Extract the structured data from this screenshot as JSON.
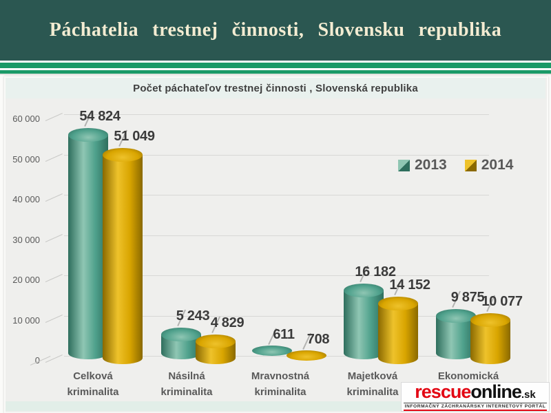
{
  "header": {
    "title": "Páchatelia trestnej činnosti, Slovensku republika"
  },
  "chart": {
    "title": "Počet páchateľov trestnej činnosti , Slovenská republika"
  },
  "chart_data": {
    "type": "bar",
    "subtype": "3d-cylinder",
    "title": "Počet páchateľov trestnej činnosti , Slovenská republika",
    "categories": [
      "Celková kriminalita",
      "Násilná kriminalita",
      "Mravnostná kriminalita",
      "Majetková kriminalita",
      "Ekonomická kriminalita"
    ],
    "series": [
      {
        "name": "2013",
        "values": [
          54824,
          5243,
          611,
          16182,
          9875
        ],
        "labels": [
          "54 824",
          "5 243",
          "611",
          "16 182",
          "9 875"
        ],
        "color": "#4FA18C",
        "color_light": "#8FC6B3",
        "color_dark": "#2E6E5D"
      },
      {
        "name": "2014",
        "values": [
          51049,
          4829,
          708,
          14152,
          10077
        ],
        "labels": [
          "51 049",
          "4 829",
          "708",
          "14 152",
          "10 077"
        ],
        "color": "#D9A500",
        "color_light": "#EEC22B",
        "color_dark": "#8A6900"
      }
    ],
    "ylim": [
      0,
      60000
    ],
    "yticks": [
      "0",
      "10 000",
      "20 000",
      "30 000",
      "40 000",
      "50 000",
      "60 000"
    ],
    "grid": true,
    "legend_position": "upper-right"
  },
  "legend": {
    "items": [
      "2013",
      "2014"
    ]
  },
  "logo": {
    "word_red": "rescue",
    "word_black": "online",
    "tld": ".sk",
    "tagline": "INFORMAČNÝ ZÁCHRANÁRSKY INTERNETOVÝ PORTÁL",
    "accent_color": "#E30613"
  },
  "theme": {
    "header_bg": "#2B5751",
    "header_text": "#F3ECD2",
    "stripe_green": "#1B9A67",
    "panel_bg": "#EFEFED",
    "title_strip_bg": "#E9F1EE",
    "grid_color": "#D7D7D5",
    "axis_text": "#595959",
    "data_label_text": "#3B3B3B"
  }
}
